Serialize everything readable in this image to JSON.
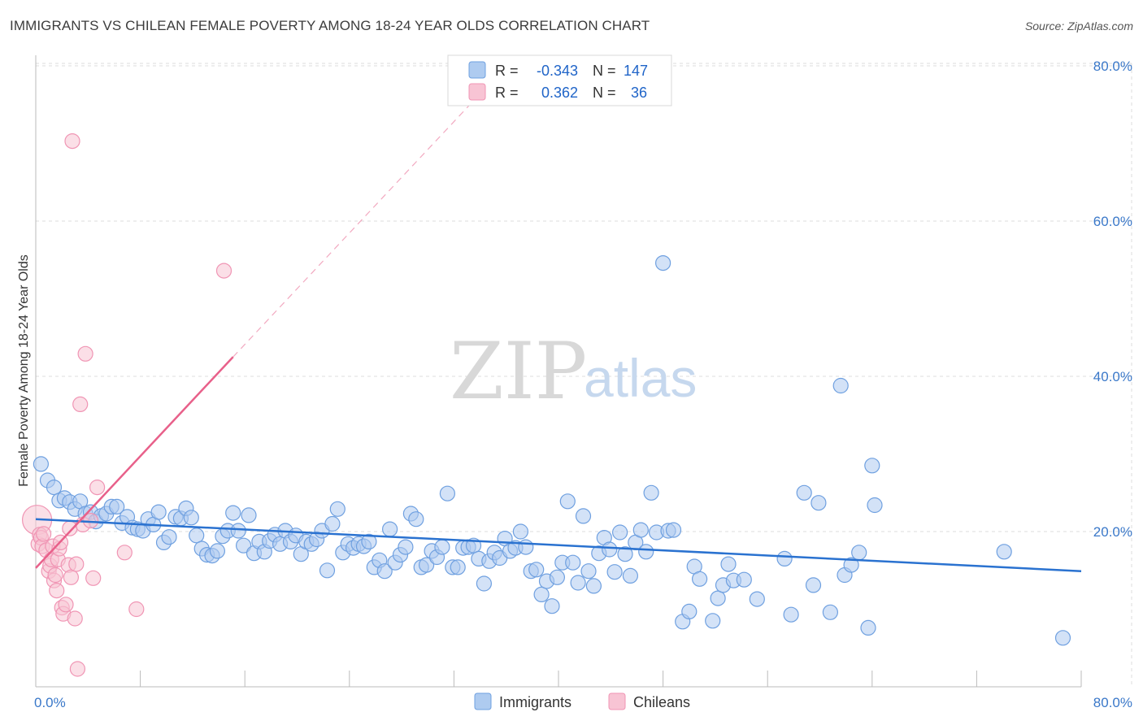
{
  "title": "IMMIGRANTS VS CHILEAN FEMALE POVERTY AMONG 18-24 YEAR OLDS CORRELATION CHART",
  "source": "Source: ZipAtlas.com",
  "watermark": {
    "zip": "ZIP",
    "atlas": "atlas"
  },
  "legend": {
    "r_label": "R =",
    "n_label": "N =",
    "rows": [
      {
        "r": "-0.343",
        "n": "147"
      },
      {
        "r": "0.362",
        "n": "36"
      }
    ]
  },
  "chart_data": {
    "type": "scatter",
    "title": "IMMIGRANTS VS CHILEAN FEMALE POVERTY AMONG 18-24 YEAR OLDS CORRELATION CHART",
    "xlabel": "",
    "ylabel": "Female Poverty Among 18-24 Year Olds",
    "xlim": [
      0,
      80
    ],
    "ylim": [
      0,
      84
    ],
    "x_ticks": [
      "0.0%",
      "80.0%"
    ],
    "y_ticks": [
      {
        "value": 20,
        "label": "20.0%"
      },
      {
        "value": 40,
        "label": "40.0%"
      },
      {
        "value": 60,
        "label": "60.0%"
      },
      {
        "value": 80,
        "label": "80.0%"
      }
    ],
    "grid": true,
    "legend_position": "bottom",
    "series": [
      {
        "name": "Immigrants",
        "color": "#6fa0e0",
        "fill": "#aecbf0",
        "trend_color": "#2a72d0",
        "r": -0.343,
        "n": 147,
        "trend": {
          "x": [
            0,
            80
          ],
          "y": [
            21.6,
            14.9
          ]
        },
        "points": [
          [
            0.4,
            28.7
          ],
          [
            0.9,
            26.6
          ],
          [
            1.4,
            25.7
          ],
          [
            1.8,
            24.0
          ],
          [
            2.2,
            24.3
          ],
          [
            2.6,
            23.8
          ],
          [
            3.0,
            22.9
          ],
          [
            3.4,
            23.9
          ],
          [
            3.8,
            22.3
          ],
          [
            4.2,
            22.5
          ],
          [
            4.6,
            21.3
          ],
          [
            5.0,
            22.0
          ],
          [
            5.4,
            22.3
          ],
          [
            5.8,
            23.2
          ],
          [
            6.2,
            23.2
          ],
          [
            6.6,
            21.1
          ],
          [
            7.0,
            21.9
          ],
          [
            7.4,
            20.5
          ],
          [
            7.8,
            20.3
          ],
          [
            8.2,
            20.1
          ],
          [
            8.6,
            21.6
          ],
          [
            9.0,
            20.9
          ],
          [
            9.4,
            22.5
          ],
          [
            9.8,
            18.6
          ],
          [
            10.2,
            19.3
          ],
          [
            10.7,
            21.9
          ],
          [
            11.1,
            21.7
          ],
          [
            11.5,
            23.0
          ],
          [
            11.9,
            21.8
          ],
          [
            12.3,
            19.5
          ],
          [
            12.7,
            17.8
          ],
          [
            13.1,
            17.0
          ],
          [
            13.5,
            16.9
          ],
          [
            13.9,
            17.5
          ],
          [
            14.3,
            19.4
          ],
          [
            14.7,
            20.1
          ],
          [
            15.1,
            22.4
          ],
          [
            15.5,
            20.1
          ],
          [
            15.9,
            18.2
          ],
          [
            16.3,
            22.1
          ],
          [
            16.7,
            17.2
          ],
          [
            17.1,
            18.7
          ],
          [
            17.5,
            17.4
          ],
          [
            17.9,
            18.8
          ],
          [
            18.3,
            19.6
          ],
          [
            18.7,
            18.4
          ],
          [
            19.1,
            20.1
          ],
          [
            19.5,
            18.7
          ],
          [
            19.9,
            19.5
          ],
          [
            20.3,
            17.1
          ],
          [
            20.7,
            18.7
          ],
          [
            21.1,
            18.4
          ],
          [
            21.5,
            19.0
          ],
          [
            21.9,
            20.1
          ],
          [
            22.3,
            15.0
          ],
          [
            22.7,
            21.0
          ],
          [
            23.1,
            22.9
          ],
          [
            23.5,
            17.3
          ],
          [
            23.9,
            18.4
          ],
          [
            24.3,
            17.9
          ],
          [
            24.7,
            18.4
          ],
          [
            25.1,
            18.1
          ],
          [
            25.5,
            18.7
          ],
          [
            25.9,
            15.4
          ],
          [
            26.3,
            16.3
          ],
          [
            26.7,
            14.9
          ],
          [
            27.1,
            20.3
          ],
          [
            27.5,
            16.0
          ],
          [
            27.9,
            17.0
          ],
          [
            28.3,
            18.0
          ],
          [
            28.7,
            22.3
          ],
          [
            29.1,
            21.6
          ],
          [
            29.5,
            15.4
          ],
          [
            29.9,
            15.7
          ],
          [
            30.3,
            17.5
          ],
          [
            30.7,
            16.7
          ],
          [
            31.1,
            18.0
          ],
          [
            31.5,
            24.9
          ],
          [
            31.9,
            15.4
          ],
          [
            32.3,
            15.4
          ],
          [
            32.7,
            17.9
          ],
          [
            33.1,
            18.0
          ],
          [
            33.5,
            18.2
          ],
          [
            33.9,
            16.5
          ],
          [
            34.3,
            13.3
          ],
          [
            34.7,
            16.2
          ],
          [
            35.1,
            17.3
          ],
          [
            35.5,
            16.6
          ],
          [
            35.9,
            19.1
          ],
          [
            36.3,
            17.5
          ],
          [
            36.7,
            17.9
          ],
          [
            37.1,
            20.0
          ],
          [
            37.5,
            18.0
          ],
          [
            37.9,
            14.9
          ],
          [
            38.3,
            15.1
          ],
          [
            38.7,
            11.9
          ],
          [
            39.1,
            13.6
          ],
          [
            39.5,
            10.4
          ],
          [
            39.9,
            14.1
          ],
          [
            40.3,
            16.0
          ],
          [
            40.7,
            23.9
          ],
          [
            41.1,
            16.0
          ],
          [
            41.5,
            13.4
          ],
          [
            41.9,
            22.0
          ],
          [
            42.3,
            14.9
          ],
          [
            42.7,
            13.0
          ],
          [
            43.1,
            17.2
          ],
          [
            43.5,
            19.2
          ],
          [
            43.9,
            17.7
          ],
          [
            44.3,
            14.8
          ],
          [
            44.7,
            19.9
          ],
          [
            45.1,
            17.1
          ],
          [
            45.5,
            14.3
          ],
          [
            45.9,
            18.6
          ],
          [
            46.3,
            20.2
          ],
          [
            46.7,
            17.4
          ],
          [
            47.1,
            25.0
          ],
          [
            47.5,
            19.9
          ],
          [
            48.0,
            54.6
          ],
          [
            48.4,
            20.1
          ],
          [
            48.8,
            20.2
          ],
          [
            49.5,
            8.4
          ],
          [
            50.0,
            9.7
          ],
          [
            50.4,
            15.5
          ],
          [
            50.8,
            13.9
          ],
          [
            51.8,
            8.5
          ],
          [
            52.2,
            11.4
          ],
          [
            52.6,
            13.1
          ],
          [
            53.0,
            15.8
          ],
          [
            53.4,
            13.7
          ],
          [
            54.2,
            13.8
          ],
          [
            55.2,
            11.3
          ],
          [
            57.3,
            16.5
          ],
          [
            57.8,
            9.3
          ],
          [
            58.8,
            25.0
          ],
          [
            59.5,
            13.1
          ],
          [
            59.9,
            23.7
          ],
          [
            60.8,
            9.6
          ],
          [
            61.6,
            38.8
          ],
          [
            61.9,
            14.4
          ],
          [
            62.4,
            15.7
          ],
          [
            63.0,
            17.3
          ],
          [
            63.7,
            7.6
          ],
          [
            64.0,
            28.5
          ],
          [
            64.2,
            23.4
          ],
          [
            74.1,
            17.4
          ],
          [
            78.6,
            6.3
          ]
        ]
      },
      {
        "name": "Chileans",
        "color": "#f095b4",
        "fill": "#f8c4d4",
        "trend_color": "#e8608a",
        "r": 0.362,
        "n": 36,
        "trend": {
          "x": [
            0,
            15.1
          ],
          "y": [
            15.3,
            42.5
          ]
        },
        "trend_extended": {
          "x": [
            15.1,
            34
          ],
          "y": [
            42.5,
            76.4
          ]
        },
        "points": [
          [
            0.1,
            21.5
          ],
          [
            0.2,
            18.4
          ],
          [
            0.3,
            19.6
          ],
          [
            0.4,
            19.2
          ],
          [
            0.5,
            18.1
          ],
          [
            0.6,
            19.7
          ],
          [
            0.8,
            17.6
          ],
          [
            1.0,
            14.9
          ],
          [
            1.1,
            15.6
          ],
          [
            1.2,
            16.4
          ],
          [
            1.3,
            18.1
          ],
          [
            1.4,
            13.7
          ],
          [
            1.5,
            14.4
          ],
          [
            1.6,
            12.4
          ],
          [
            1.7,
            16.4
          ],
          [
            1.8,
            17.8
          ],
          [
            1.9,
            18.6
          ],
          [
            2.0,
            10.2
          ],
          [
            2.1,
            9.4
          ],
          [
            2.3,
            10.6
          ],
          [
            2.5,
            15.7
          ],
          [
            2.6,
            20.4
          ],
          [
            2.7,
            14.1
          ],
          [
            2.8,
            70.3
          ],
          [
            3.0,
            8.8
          ],
          [
            3.1,
            15.8
          ],
          [
            3.2,
            2.3
          ],
          [
            3.4,
            36.4
          ],
          [
            3.6,
            20.9
          ],
          [
            3.8,
            42.9
          ],
          [
            4.2,
            21.4
          ],
          [
            4.4,
            14.0
          ],
          [
            4.7,
            25.7
          ],
          [
            6.8,
            17.3
          ],
          [
            7.7,
            10.0
          ],
          [
            14.4,
            53.6
          ]
        ]
      }
    ]
  }
}
